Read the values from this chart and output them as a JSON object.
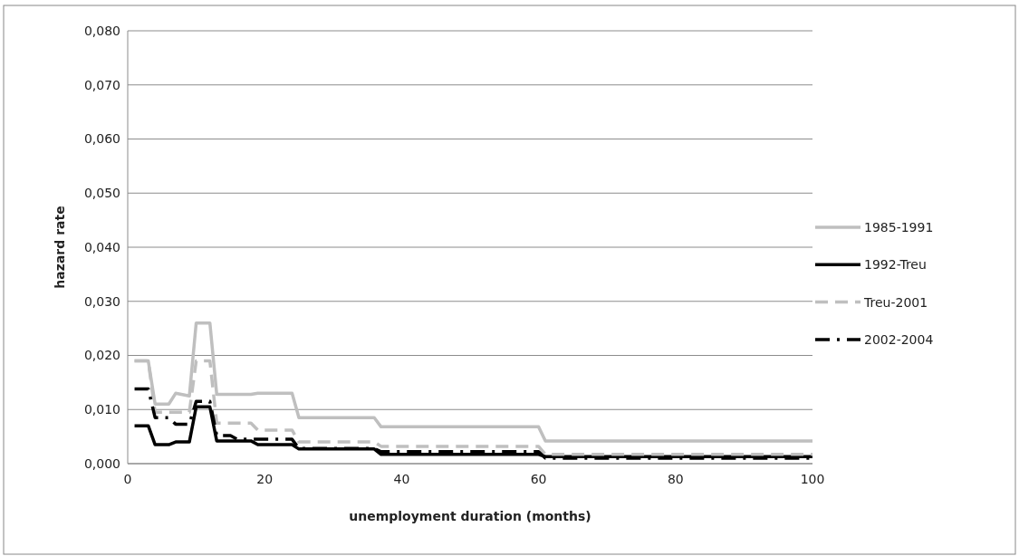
{
  "chart_data": {
    "type": "line",
    "xlabel": "unemployment duration (months)",
    "ylabel": "hazard rate",
    "xlim": [
      0,
      100
    ],
    "xticks": [
      0,
      20,
      40,
      60,
      80,
      100
    ],
    "ylim": [
      0,
      0.08
    ],
    "yticks": [
      {
        "value": 0,
        "label": "0,000"
      },
      {
        "value": 0.01,
        "label": "0,010"
      },
      {
        "value": 0.02,
        "label": "0,020"
      },
      {
        "value": 0.03,
        "label": "0,030"
      },
      {
        "value": 0.04,
        "label": "0,040"
      },
      {
        "value": 0.05,
        "label": "0,050"
      },
      {
        "value": 0.06,
        "label": "0,060"
      },
      {
        "value": 0.07,
        "label": "0,070"
      },
      {
        "value": 0.08,
        "label": "0,080"
      }
    ],
    "grid": "y",
    "legend": "right",
    "marker": "none",
    "series": [
      {
        "name": "1985-1991",
        "color": "#bfbfbf",
        "line_style": "solid",
        "x": [
          1,
          3,
          4,
          6,
          7,
          9,
          10,
          12,
          13,
          18,
          19,
          24,
          25,
          36,
          37,
          60,
          61,
          100
        ],
        "values": [
          0.019,
          0.019,
          0.011,
          0.011,
          0.013,
          0.0125,
          0.026,
          0.026,
          0.0128,
          0.0128,
          0.013,
          0.013,
          0.0085,
          0.0085,
          0.0068,
          0.0068,
          0.0042,
          0.0042
        ]
      },
      {
        "name": "1992-Treu",
        "color": "#000000",
        "line_style": "solid",
        "x": [
          1,
          3,
          4,
          6,
          7,
          9,
          10,
          12,
          13,
          18,
          19,
          24,
          25,
          36,
          37,
          60,
          61,
          100
        ],
        "values": [
          0.007,
          0.007,
          0.0035,
          0.0035,
          0.004,
          0.004,
          0.0105,
          0.0105,
          0.0042,
          0.0042,
          0.0035,
          0.0035,
          0.0027,
          0.0027,
          0.0017,
          0.0017,
          0.0013,
          0.0013
        ]
      },
      {
        "name": "Treu-2001",
        "color": "#bfbfbf",
        "line_style": "dashed",
        "x": [
          1,
          3,
          4,
          9,
          10,
          12,
          13,
          18,
          19,
          24,
          25,
          36,
          37,
          60,
          61,
          100
        ],
        "values": [
          0.019,
          0.019,
          0.0095,
          0.0095,
          0.019,
          0.019,
          0.0075,
          0.0075,
          0.0062,
          0.0062,
          0.004,
          0.004,
          0.0032,
          0.0032,
          0.0017,
          0.0017
        ]
      },
      {
        "name": "2002-2004",
        "color": "#000000",
        "line_style": "dashdot",
        "x": [
          1,
          3,
          4,
          6,
          7,
          9,
          10,
          12,
          13,
          15,
          16,
          24,
          25,
          36,
          37,
          60,
          61,
          100
        ],
        "values": [
          0.0138,
          0.0138,
          0.0085,
          0.0085,
          0.0073,
          0.0073,
          0.0115,
          0.0115,
          0.0052,
          0.0052,
          0.0045,
          0.0045,
          0.0028,
          0.0028,
          0.0022,
          0.0022,
          0.001,
          0.001
        ]
      }
    ]
  }
}
